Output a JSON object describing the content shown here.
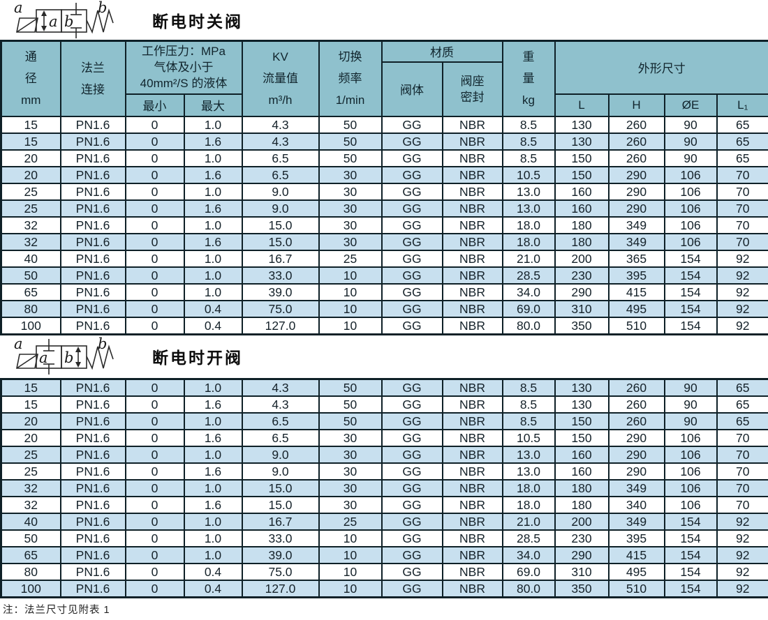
{
  "colors": {
    "header_bg": "#8fc1cd",
    "stripe_blue": "#c8e0ef",
    "stripe_white": "#ffffff",
    "border": "#0e2027",
    "text": "#15222a"
  },
  "section1": {
    "title": "断电时关阀",
    "symbol": {
      "port_a_label": "a",
      "port_b_label": "b",
      "box_a_label": "a",
      "box_b_label": "b"
    }
  },
  "section2": {
    "title": "断电时开阀",
    "symbol": {
      "port_a_label": "a",
      "port_b_label": "b",
      "box_a_label": "a",
      "box_b_label": "b"
    }
  },
  "header": {
    "diameter": [
      "通",
      "径",
      "mm"
    ],
    "flange": [
      "法兰",
      "连接"
    ],
    "pressure": [
      "工作压力：MPa",
      "气体及小于",
      "40mm²/S 的液体"
    ],
    "pressure_min": "最小",
    "pressure_max": "最大",
    "kv": [
      "KV",
      "流量值",
      "m³/h"
    ],
    "freq": [
      "切换",
      "频率",
      "1/min"
    ],
    "material": "材质",
    "material_body": "阀体",
    "material_seal": [
      "阀座",
      "密封"
    ],
    "weight": [
      "重",
      "量",
      "kg"
    ],
    "dimensions": "外形尺寸",
    "dim_cols": [
      "L",
      "H",
      "ØE",
      "L₁"
    ]
  },
  "table1": {
    "rows": [
      [
        "15",
        "PN1.6",
        "0",
        "1.0",
        "4.3",
        "50",
        "GG",
        "NBR",
        "8.5",
        "130",
        "260",
        "90",
        "65"
      ],
      [
        "15",
        "PN1.6",
        "0",
        "1.6",
        "4.3",
        "50",
        "GG",
        "NBR",
        "8.5",
        "130",
        "260",
        "90",
        "65"
      ],
      [
        "20",
        "PN1.6",
        "0",
        "1.0",
        "6.5",
        "50",
        "GG",
        "NBR",
        "8.5",
        "150",
        "260",
        "90",
        "65"
      ],
      [
        "20",
        "PN1.6",
        "0",
        "1.6",
        "6.5",
        "30",
        "GG",
        "NBR",
        "10.5",
        "150",
        "290",
        "106",
        "70"
      ],
      [
        "25",
        "PN1.6",
        "0",
        "1.0",
        "9.0",
        "30",
        "GG",
        "NBR",
        "13.0",
        "160",
        "290",
        "106",
        "70"
      ],
      [
        "25",
        "PN1.6",
        "0",
        "1.6",
        "9.0",
        "30",
        "GG",
        "NBR",
        "13.0",
        "160",
        "290",
        "106",
        "70"
      ],
      [
        "32",
        "PN1.6",
        "0",
        "1.0",
        "15.0",
        "30",
        "GG",
        "NBR",
        "18.0",
        "180",
        "349",
        "106",
        "70"
      ],
      [
        "32",
        "PN1.6",
        "0",
        "1.6",
        "15.0",
        "30",
        "GG",
        "NBR",
        "18.0",
        "180",
        "349",
        "106",
        "70"
      ],
      [
        "40",
        "PN1.6",
        "0",
        "1.0",
        "16.7",
        "25",
        "GG",
        "NBR",
        "21.0",
        "200",
        "365",
        "154",
        "92"
      ],
      [
        "50",
        "PN1.6",
        "0",
        "1.0",
        "33.0",
        "10",
        "GG",
        "NBR",
        "28.5",
        "230",
        "395",
        "154",
        "92"
      ],
      [
        "65",
        "PN1.6",
        "0",
        "1.0",
        "39.0",
        "10",
        "GG",
        "NBR",
        "34.0",
        "290",
        "415",
        "154",
        "92"
      ],
      [
        "80",
        "PN1.6",
        "0",
        "0.4",
        "75.0",
        "10",
        "GG",
        "NBR",
        "69.0",
        "310",
        "495",
        "154",
        "92"
      ],
      [
        "100",
        "PN1.6",
        "0",
        "0.4",
        "127.0",
        "10",
        "GG",
        "NBR",
        "80.0",
        "350",
        "510",
        "154",
        "92"
      ]
    ]
  },
  "table2": {
    "rows": [
      [
        "15",
        "PN1.6",
        "0",
        "1.0",
        "4.3",
        "50",
        "GG",
        "NBR",
        "8.5",
        "130",
        "260",
        "90",
        "65"
      ],
      [
        "15",
        "PN1.6",
        "0",
        "1.6",
        "4.3",
        "50",
        "GG",
        "NBR",
        "8.5",
        "130",
        "260",
        "90",
        "65"
      ],
      [
        "20",
        "PN1.6",
        "0",
        "1.0",
        "6.5",
        "50",
        "GG",
        "NBR",
        "8.5",
        "150",
        "260",
        "90",
        "65"
      ],
      [
        "20",
        "PN1.6",
        "0",
        "1.6",
        "6.5",
        "30",
        "GG",
        "NBR",
        "10.5",
        "150",
        "290",
        "106",
        "70"
      ],
      [
        "25",
        "PN1.6",
        "0",
        "1.0",
        "9.0",
        "30",
        "GG",
        "NBR",
        "13.0",
        "160",
        "290",
        "106",
        "70"
      ],
      [
        "25",
        "PN1.6",
        "0",
        "1.6",
        "9.0",
        "30",
        "GG",
        "NBR",
        "13.0",
        "160",
        "290",
        "106",
        "70"
      ],
      [
        "32",
        "PN1.6",
        "0",
        "1.0",
        "15.0",
        "30",
        "GG",
        "NBR",
        "18.0",
        "180",
        "349",
        "106",
        "70"
      ],
      [
        "32",
        "PN1.6",
        "0",
        "1.6",
        "15.0",
        "30",
        "GG",
        "NBR",
        "18.0",
        "180",
        "340",
        "106",
        "70"
      ],
      [
        "40",
        "PN1.6",
        "0",
        "1.0",
        "16.7",
        "25",
        "GG",
        "NBR",
        "21.0",
        "200",
        "349",
        "154",
        "92"
      ],
      [
        "50",
        "PN1.6",
        "0",
        "1.0",
        "33.0",
        "10",
        "GG",
        "NBR",
        "28.5",
        "230",
        "395",
        "154",
        "92"
      ],
      [
        "65",
        "PN1.6",
        "0",
        "1.0",
        "39.0",
        "10",
        "GG",
        "NBR",
        "34.0",
        "290",
        "415",
        "154",
        "92"
      ],
      [
        "80",
        "PN1.6",
        "0",
        "0.4",
        "75.0",
        "10",
        "GG",
        "NBR",
        "69.0",
        "310",
        "495",
        "154",
        "92"
      ],
      [
        "100",
        "PN1.6",
        "0",
        "0.4",
        "127.0",
        "10",
        "GG",
        "NBR",
        "80.0",
        "350",
        "510",
        "154",
        "92"
      ]
    ]
  },
  "note": "注：法兰尺寸见附表 1"
}
